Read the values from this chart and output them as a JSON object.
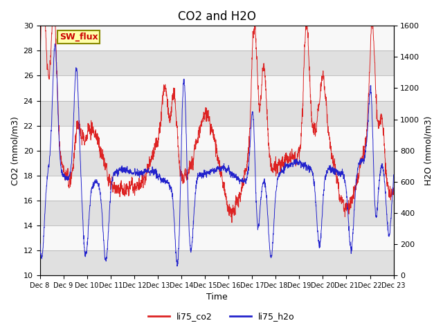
{
  "title": "CO2 and H2O",
  "xlabel": "Time",
  "ylabel_left": "CO2 (mmol/m3)",
  "ylabel_right": "H2O (mmol/m3)",
  "ylim_left": [
    10,
    30
  ],
  "ylim_right": [
    0,
    1600
  ],
  "yticks_left": [
    10,
    12,
    14,
    16,
    18,
    20,
    22,
    24,
    26,
    28,
    30
  ],
  "yticks_right": [
    0,
    200,
    400,
    600,
    800,
    1000,
    1200,
    1400,
    1600
  ],
  "xtick_labels": [
    "Dec 8",
    "Dec 9",
    "Dec 10",
    "Dec 11",
    "Dec 12",
    "Dec 13",
    "Dec 14",
    "Dec 15",
    "Dec 16",
    "Dec 17",
    "Dec 18",
    "Dec 19",
    "Dec 20",
    "Dec 21",
    "Dec 22",
    "Dec 23"
  ],
  "co2_color": "#dd2222",
  "h2o_color": "#2222cc",
  "band_colors": [
    "#e0e0e0",
    "#f8f8f8"
  ],
  "annotation_text": "SW_flux",
  "annotation_bg": "#ffffaa",
  "annotation_border": "#888800",
  "legend_co2": "li75_co2",
  "legend_h2o": "li75_h2o",
  "title_fontsize": 12,
  "axis_fontsize": 9,
  "tick_fontsize": 8,
  "legend_fontsize": 9
}
